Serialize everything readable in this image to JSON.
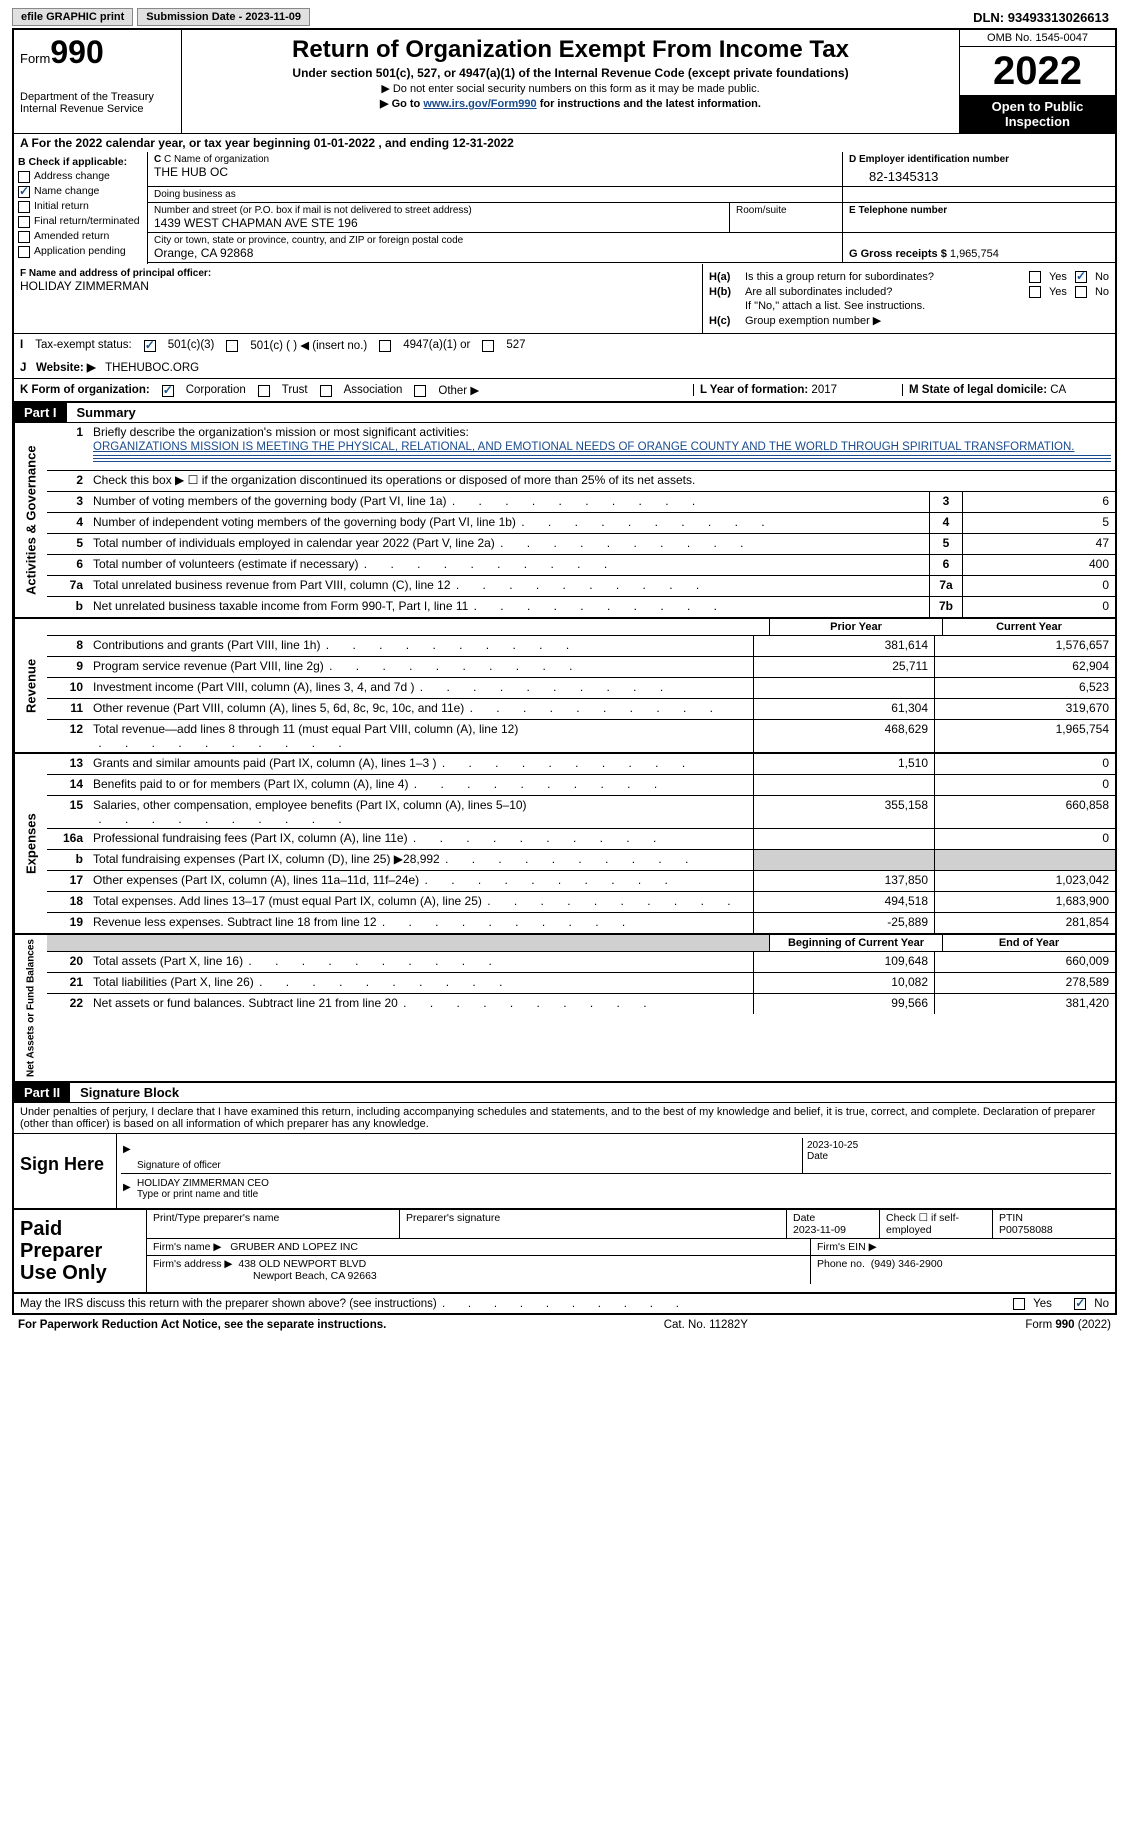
{
  "topbar": {
    "efile": "efile GRAPHIC print",
    "submission": "Submission Date - 2023-11-09",
    "dln_label": "DLN:",
    "dln": "93493313026613"
  },
  "header": {
    "form_prefix": "Form",
    "form_num": "990",
    "dept": "Department of the Treasury",
    "irs": "Internal Revenue Service",
    "title": "Return of Organization Exempt From Income Tax",
    "sub1": "Under section 501(c), 527, or 4947(a)(1) of the Internal Revenue Code (except private foundations)",
    "sub2": "▶ Do not enter social security numbers on this form as it may be made public.",
    "sub3_pre": "▶ Go to ",
    "sub3_link": "www.irs.gov/Form990",
    "sub3_post": " for instructions and the latest information.",
    "omb": "OMB No. 1545-0047",
    "year": "2022",
    "open": "Open to Public Inspection"
  },
  "lineA": "A For the 2022 calendar year, or tax year beginning 01-01-2022    , and ending 12-31-2022",
  "sectionB": {
    "label": "B Check if applicable:",
    "items": [
      {
        "txt": "Address change",
        "checked": false
      },
      {
        "txt": "Name change",
        "checked": true
      },
      {
        "txt": "Initial return",
        "checked": false
      },
      {
        "txt": "Final return/terminated",
        "checked": false
      },
      {
        "txt": "Amended return",
        "checked": false
      },
      {
        "txt": "Application pending",
        "checked": false
      }
    ]
  },
  "sectionC": {
    "name_label": "C Name of organization",
    "name": "THE HUB OC",
    "dba_label": "Doing business as",
    "dba": "",
    "addr_label": "Number and street (or P.O. box if mail is not delivered to street address)",
    "addr": "1439 WEST CHAPMAN AVE STE 196",
    "room_label": "Room/suite",
    "city_label": "City or town, state or province, country, and ZIP or foreign postal code",
    "city": "Orange, CA  92868"
  },
  "sectionD": {
    "label": "D Employer identification number",
    "ein": "82-1345313"
  },
  "sectionE": {
    "label": "E Telephone number",
    "val": ""
  },
  "sectionG": {
    "label": "G Gross receipts $",
    "val": "1,965,754"
  },
  "sectionF": {
    "label": "F Name and address of principal officer:",
    "name": "HOLIDAY ZIMMERMAN"
  },
  "sectionH": {
    "a_label": "H(a)",
    "a_txt": "Is this a group return for subordinates?",
    "a_yes": "Yes",
    "a_no": "No",
    "b_label": "H(b)",
    "b_txt": "Are all subordinates included?",
    "b_note": "If \"No,\" attach a list. See instructions.",
    "c_label": "H(c)",
    "c_txt": "Group exemption number ▶"
  },
  "sectionI": {
    "label": "I",
    "txt": "Tax-exempt status:",
    "opts": [
      "501(c)(3)",
      "501(c) (  ) ◀ (insert no.)",
      "4947(a)(1) or",
      "527"
    ]
  },
  "sectionJ": {
    "label": "J",
    "txt": "Website: ▶",
    "val": "THEHUBOC.ORG"
  },
  "sectionK": {
    "label": "K Form of organization:",
    "opts": [
      "Corporation",
      "Trust",
      "Association",
      "Other ▶"
    ],
    "L_label": "L Year of formation:",
    "L_val": "2017",
    "M_label": "M State of legal domicile:",
    "M_val": "CA"
  },
  "part1": {
    "hdr": "Part I",
    "title": "Summary",
    "q1_label": "1",
    "q1_txt": "Briefly describe the organization's mission or most significant activities:",
    "q1_mission": "ORGANIZATIONS MISSION IS MEETING THE PHYSICAL, RELATIONAL, AND EMOTIONAL NEEDS OF ORANGE COUNTY AND THE WORLD THROUGH SPIRITUAL TRANSFORMATION.",
    "q2_label": "2",
    "q2_txt": "Check this box ▶ ☐ if the organization discontinued its operations or disposed of more than 25% of its net assets.",
    "rows_gov": [
      {
        "n": "3",
        "t": "Number of voting members of the governing body (Part VI, line 1a)",
        "box": "3",
        "v": "6"
      },
      {
        "n": "4",
        "t": "Number of independent voting members of the governing body (Part VI, line 1b)",
        "box": "4",
        "v": "5"
      },
      {
        "n": "5",
        "t": "Total number of individuals employed in calendar year 2022 (Part V, line 2a)",
        "box": "5",
        "v": "47"
      },
      {
        "n": "6",
        "t": "Total number of volunteers (estimate if necessary)",
        "box": "6",
        "v": "400"
      },
      {
        "n": "7a",
        "t": "Total unrelated business revenue from Part VIII, column (C), line 12",
        "box": "7a",
        "v": "0"
      },
      {
        "n": "b",
        "t": "Net unrelated business taxable income from Form 990-T, Part I, line 11",
        "box": "7b",
        "v": "0"
      }
    ],
    "prior_hdr": "Prior Year",
    "curr_hdr": "Current Year",
    "rows_rev": [
      {
        "n": "8",
        "t": "Contributions and grants (Part VIII, line 1h)",
        "p": "381,614",
        "c": "1,576,657"
      },
      {
        "n": "9",
        "t": "Program service revenue (Part VIII, line 2g)",
        "p": "25,711",
        "c": "62,904"
      },
      {
        "n": "10",
        "t": "Investment income (Part VIII, column (A), lines 3, 4, and 7d )",
        "p": "",
        "c": "6,523"
      },
      {
        "n": "11",
        "t": "Other revenue (Part VIII, column (A), lines 5, 6d, 8c, 9c, 10c, and 11e)",
        "p": "61,304",
        "c": "319,670"
      },
      {
        "n": "12",
        "t": "Total revenue—add lines 8 through 11 (must equal Part VIII, column (A), line 12)",
        "p": "468,629",
        "c": "1,965,754"
      }
    ],
    "rows_exp": [
      {
        "n": "13",
        "t": "Grants and similar amounts paid (Part IX, column (A), lines 1–3 )",
        "p": "1,510",
        "c": "0"
      },
      {
        "n": "14",
        "t": "Benefits paid to or for members (Part IX, column (A), line 4)",
        "p": "",
        "c": "0"
      },
      {
        "n": "15",
        "t": "Salaries, other compensation, employee benefits (Part IX, column (A), lines 5–10)",
        "p": "355,158",
        "c": "660,858"
      },
      {
        "n": "16a",
        "t": "Professional fundraising fees (Part IX, column (A), line 11e)",
        "p": "",
        "c": "0"
      },
      {
        "n": "b",
        "t": "Total fundraising expenses (Part IX, column (D), line 25) ▶28,992",
        "p": "SHADED",
        "c": "SHADED"
      },
      {
        "n": "17",
        "t": "Other expenses (Part IX, column (A), lines 11a–11d, 11f–24e)",
        "p": "137,850",
        "c": "1,023,042"
      },
      {
        "n": "18",
        "t": "Total expenses. Add lines 13–17 (must equal Part IX, column (A), line 25)",
        "p": "494,518",
        "c": "1,683,900"
      },
      {
        "n": "19",
        "t": "Revenue less expenses. Subtract line 18 from line 12",
        "p": "-25,889",
        "c": "281,854"
      }
    ],
    "bcy_hdr": "Beginning of Current Year",
    "eoy_hdr": "End of Year",
    "rows_net": [
      {
        "n": "20",
        "t": "Total assets (Part X, line 16)",
        "p": "109,648",
        "c": "660,009"
      },
      {
        "n": "21",
        "t": "Total liabilities (Part X, line 26)",
        "p": "10,082",
        "c": "278,589"
      },
      {
        "n": "22",
        "t": "Net assets or fund balances. Subtract line 21 from line 20",
        "p": "99,566",
        "c": "381,420"
      }
    ],
    "side_gov": "Activities & Governance",
    "side_rev": "Revenue",
    "side_exp": "Expenses",
    "side_net": "Net Assets or Fund Balances"
  },
  "part2": {
    "hdr": "Part II",
    "title": "Signature Block",
    "declare": "Under penalties of perjury, I declare that I have examined this return, including accompanying schedules and statements, and to the best of my knowledge and belief, it is true, correct, and complete. Declaration of preparer (other than officer) is based on all information of which preparer has any knowledge.",
    "sign_here": "Sign Here",
    "sig_officer": "Signature of officer",
    "sig_date": "Date",
    "sig_date_val": "2023-10-25",
    "name_title_lbl": "Type or print name and title",
    "name_title": "HOLIDAY ZIMMERMAN  CEO",
    "paid_prep": "Paid Preparer Use Only",
    "prep_name_lbl": "Print/Type preparer's name",
    "prep_sig_lbl": "Preparer's signature",
    "prep_date_lbl": "Date",
    "prep_date": "2023-11-09",
    "prep_check_lbl": "Check ☐ if self-employed",
    "ptin_lbl": "PTIN",
    "ptin": "P00758088",
    "firm_name_lbl": "Firm's name    ▶",
    "firm_name": "GRUBER AND LOPEZ INC",
    "firm_ein_lbl": "Firm's EIN ▶",
    "firm_addr_lbl": "Firm's address ▶",
    "firm_addr1": "438 OLD NEWPORT BLVD",
    "firm_addr2": "Newport Beach, CA  92663",
    "phone_lbl": "Phone no.",
    "phone": "(949) 346-2900",
    "discuss": "May the IRS discuss this return with the preparer shown above? (see instructions)",
    "yes": "Yes",
    "no": "No"
  },
  "footer": {
    "pra": "For Paperwork Reduction Act Notice, see the separate instructions.",
    "cat": "Cat. No. 11282Y",
    "form": "Form 990 (2022)"
  }
}
